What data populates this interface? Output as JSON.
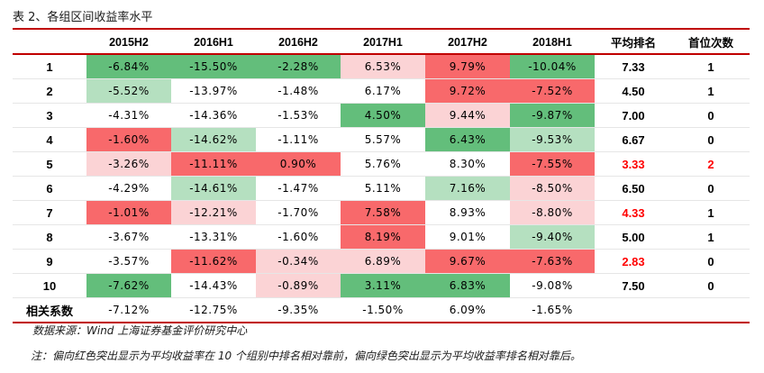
{
  "title": "表 2、各组区间收益率水平",
  "table": {
    "headers": [
      "",
      "2015H2",
      "2016H1",
      "2016H2",
      "2017H1",
      "2017H2",
      "2018H1",
      "平均排名",
      "首位次数"
    ],
    "rows": [
      {
        "label": "1",
        "values": [
          "-6.84%",
          "-15.50%",
          "-2.28%",
          "6.53%",
          "9.79%",
          "-10.04%"
        ],
        "colors": [
          "#63be7b",
          "#63be7b",
          "#63be7b",
          "#fbd3d5",
          "#f8696b",
          "#63be7b"
        ],
        "rank": "7.33",
        "first": "1",
        "highlight": false
      },
      {
        "label": "2",
        "values": [
          "-5.52%",
          "-13.97%",
          "-1.48%",
          "6.17%",
          "9.72%",
          "-7.52%"
        ],
        "colors": [
          "#b5e0c0",
          "#ffffff",
          "#ffffff",
          "#ffffff",
          "#f8696b",
          "#f8696b"
        ],
        "rank": "4.50",
        "first": "1",
        "highlight": false
      },
      {
        "label": "3",
        "values": [
          "-4.31%",
          "-14.36%",
          "-1.53%",
          "4.50%",
          "9.44%",
          "-9.87%"
        ],
        "colors": [
          "#ffffff",
          "#ffffff",
          "#ffffff",
          "#63be7b",
          "#fbd3d5",
          "#63be7b"
        ],
        "rank": "7.00",
        "first": "0",
        "highlight": false
      },
      {
        "label": "4",
        "values": [
          "-1.60%",
          "-14.62%",
          "-1.11%",
          "5.57%",
          "6.43%",
          "-9.53%"
        ],
        "colors": [
          "#f8696b",
          "#b5e0c0",
          "#ffffff",
          "#ffffff",
          "#63be7b",
          "#b5e0c0"
        ],
        "rank": "6.67",
        "first": "0",
        "highlight": false
      },
      {
        "label": "5",
        "values": [
          "-3.26%",
          "-11.11%",
          "0.90%",
          "5.76%",
          "8.30%",
          "-7.55%"
        ],
        "colors": [
          "#fbd3d5",
          "#f8696b",
          "#f8696b",
          "#ffffff",
          "#ffffff",
          "#f8696b"
        ],
        "rank": "3.33",
        "first": "2",
        "highlight": true
      },
      {
        "label": "6",
        "values": [
          "-4.29%",
          "-14.61%",
          "-1.47%",
          "5.11%",
          "7.16%",
          "-8.50%"
        ],
        "colors": [
          "#ffffff",
          "#b5e0c0",
          "#ffffff",
          "#ffffff",
          "#b5e0c0",
          "#fbd3d5"
        ],
        "rank": "6.50",
        "first": "0",
        "highlight": false
      },
      {
        "label": "7",
        "values": [
          "-1.01%",
          "-12.21%",
          "-1.70%",
          "7.58%",
          "8.93%",
          "-8.80%"
        ],
        "colors": [
          "#f8696b",
          "#fbd3d5",
          "#ffffff",
          "#f8696b",
          "#ffffff",
          "#fbd3d5"
        ],
        "rank": "4.33",
        "first": "1",
        "highlight": true
      },
      {
        "label": "8",
        "values": [
          "-3.67%",
          "-13.31%",
          "-1.60%",
          "8.19%",
          "9.01%",
          "-9.40%"
        ],
        "colors": [
          "#ffffff",
          "#ffffff",
          "#ffffff",
          "#f8696b",
          "#ffffff",
          "#b5e0c0"
        ],
        "rank": "5.00",
        "first": "1",
        "highlight": false
      },
      {
        "label": "9",
        "values": [
          "-3.57%",
          "-11.62%",
          "-0.34%",
          "6.89%",
          "9.67%",
          "-7.63%"
        ],
        "colors": [
          "#ffffff",
          "#f8696b",
          "#fbd3d5",
          "#fbd3d5",
          "#f8696b",
          "#f8696b"
        ],
        "rank": "2.83",
        "first": "0",
        "highlight": true
      },
      {
        "label": "10",
        "values": [
          "-7.62%",
          "-14.43%",
          "-0.89%",
          "3.11%",
          "6.83%",
          "-9.08%"
        ],
        "colors": [
          "#63be7b",
          "#ffffff",
          "#fbd3d5",
          "#63be7b",
          "#63be7b",
          "#ffffff"
        ],
        "rank": "7.50",
        "first": "0",
        "highlight": false
      }
    ],
    "correlation": {
      "label": "相关系数",
      "values": [
        "-7.12%",
        "-12.75%",
        "-9.35%",
        "-1.50%",
        "6.09%",
        "-1.65%"
      ]
    }
  },
  "notes": {
    "source": "数据来源：Wind 上海证券基金评价研究中心",
    "remark": "注：偏向红色突出显示为平均收益率在 10 个组别中排名相对靠前，偏向绿色突出显示为平均收益率排名相对靠后。"
  }
}
